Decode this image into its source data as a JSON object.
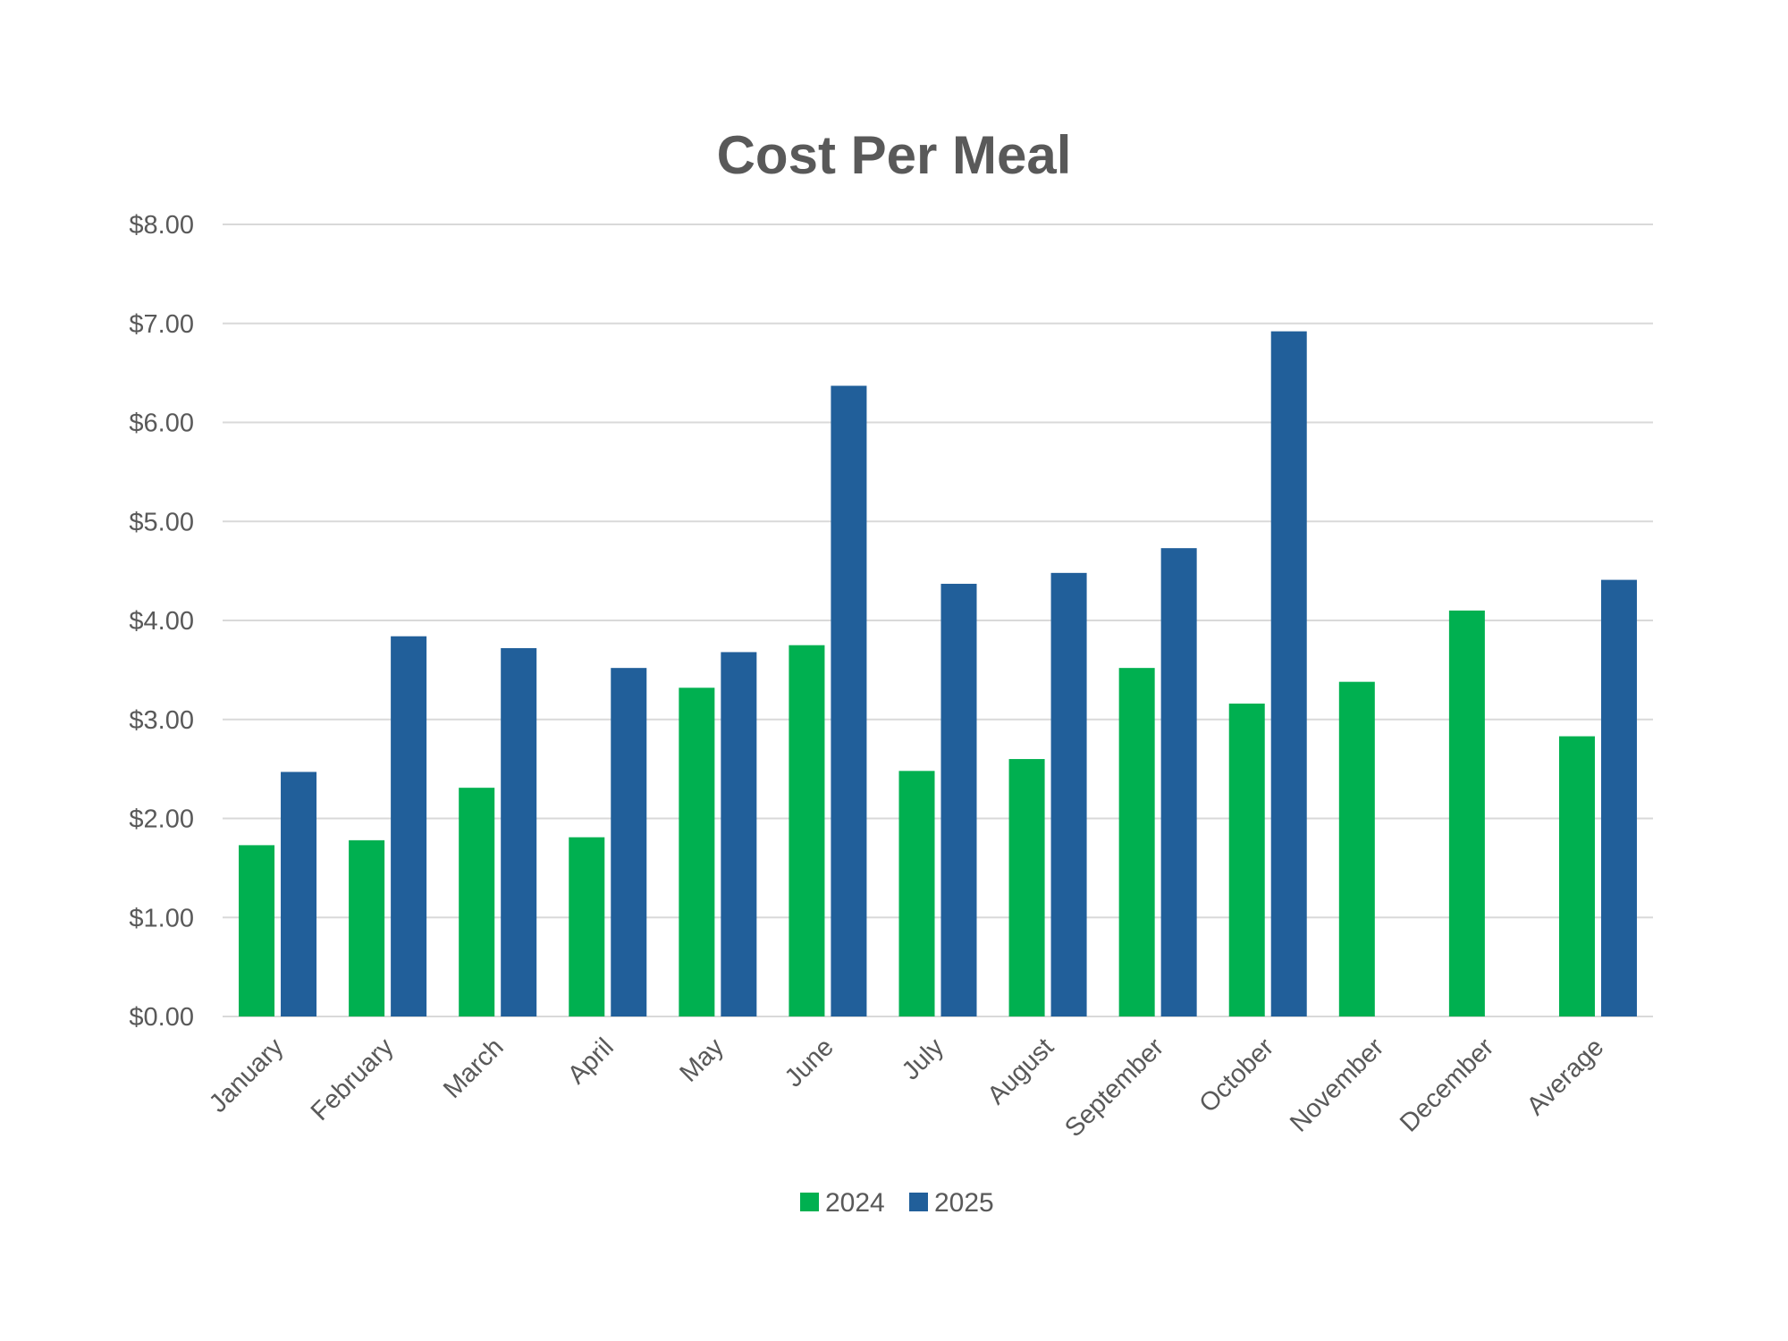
{
  "chart_data": {
    "type": "bar",
    "title": "Cost Per Meal",
    "xlabel": "",
    "ylabel": "",
    "categories": [
      "January",
      "February",
      "March",
      "April",
      "May",
      "June",
      "July",
      "August",
      "September",
      "October",
      "November",
      "December",
      "Average"
    ],
    "series": [
      {
        "name": "2024",
        "color": "#00B050",
        "values": [
          1.73,
          1.78,
          2.31,
          1.81,
          3.32,
          3.75,
          2.48,
          2.6,
          3.52,
          3.16,
          3.38,
          4.1,
          2.83
        ]
      },
      {
        "name": "2025",
        "color": "#215F9A",
        "values": [
          2.47,
          3.84,
          3.72,
          3.52,
          3.68,
          6.37,
          4.37,
          4.48,
          4.73,
          6.92,
          null,
          null,
          4.41
        ]
      }
    ],
    "ylim": [
      0,
      8
    ],
    "yticks": [
      0,
      1,
      2,
      3,
      4,
      5,
      6,
      7,
      8
    ],
    "ytick_labels": [
      "$0.00",
      "$1.00",
      "$2.00",
      "$3.00",
      "$4.00",
      "$5.00",
      "$6.00",
      "$7.00",
      "$8.00"
    ],
    "grid": true,
    "legend_position": "bottom",
    "xtick_rotation_deg": -45
  }
}
